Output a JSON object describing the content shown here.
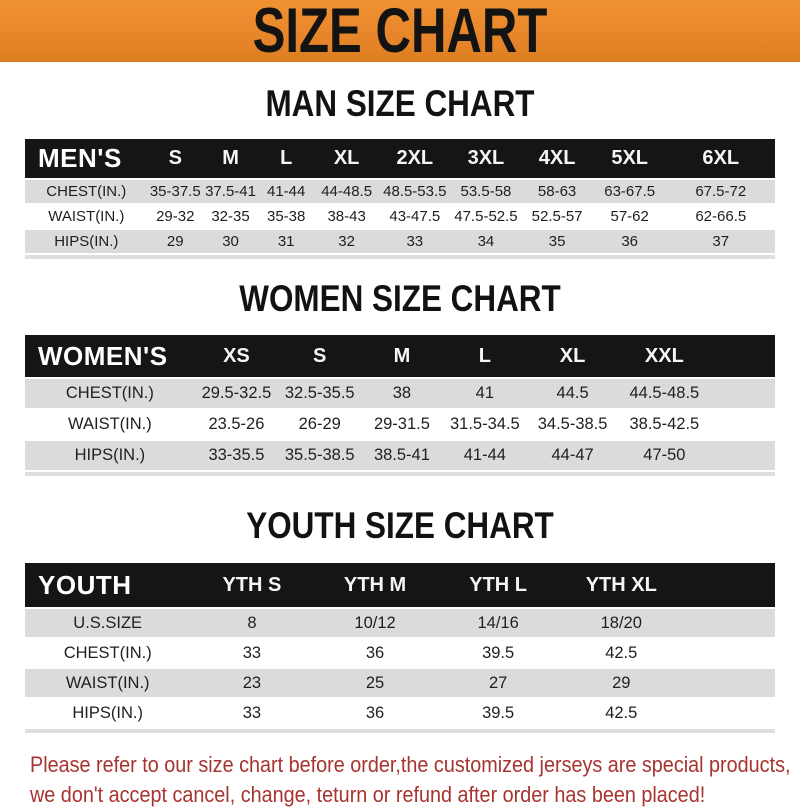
{
  "banner": {
    "title": "SIZE CHART"
  },
  "colors": {
    "banner_bg": "#E8862B",
    "header_bar_bg": "#151515",
    "alt_row_gray": "#DBDBDB",
    "footer_red": "#A83430"
  },
  "sections": {
    "men": {
      "heading": "MAN SIZE CHART",
      "corner_label": "MEN'S",
      "columns": [
        "S",
        "M",
        "L",
        "XL",
        "2XL",
        "3XL",
        "4XL",
        "5XL",
        "6XL"
      ],
      "rows": [
        {
          "label": "CHEST(IN.)",
          "values": [
            "35-37.5",
            "37.5-41",
            "41-44",
            "44-48.5",
            "48.5-53.5",
            "53.5-58",
            "58-63",
            "63-67.5",
            "67.5-72"
          ]
        },
        {
          "label": "WAIST(IN.)",
          "values": [
            "29-32",
            "32-35",
            "35-38",
            "38-43",
            "43-47.5",
            "47.5-52.5",
            "52.5-57",
            "57-62",
            "62-66.5"
          ]
        },
        {
          "label": "HIPS(IN.)",
          "values": [
            "29",
            "30",
            "31",
            "32",
            "33",
            "34",
            "35",
            "36",
            "37"
          ]
        }
      ]
    },
    "women": {
      "heading": "WOMEN SIZE CHART",
      "corner_label": "WOMEN'S",
      "columns": [
        "XS",
        "S",
        "M",
        "L",
        "XL",
        "XXL"
      ],
      "rows": [
        {
          "label": "CHEST(IN.)",
          "values": [
            "29.5-32.5",
            "32.5-35.5",
            "38",
            "41",
            "44.5",
            "44.5-48.5"
          ]
        },
        {
          "label": "WAIST(IN.)",
          "values": [
            "23.5-26",
            "26-29",
            "29-31.5",
            "31.5-34.5",
            "34.5-38.5",
            "38.5-42.5"
          ]
        },
        {
          "label": "HIPS(IN.)",
          "values": [
            "33-35.5",
            "35.5-38.5",
            "38.5-41",
            "41-44",
            "44-47",
            "47-50"
          ]
        }
      ]
    },
    "youth": {
      "heading": "YOUTH SIZE CHART",
      "corner_label": "YOUTH",
      "columns": [
        "YTH S",
        "YTH M",
        "YTH L",
        "YTH XL"
      ],
      "rows": [
        {
          "label": "U.S.SIZE",
          "values": [
            "8",
            "10/12",
            "14/16",
            "18/20"
          ]
        },
        {
          "label": "CHEST(IN.)",
          "values": [
            "33",
            "36",
            "39.5",
            "42.5"
          ]
        },
        {
          "label": "WAIST(IN.)",
          "values": [
            "23",
            "25",
            "27",
            "29"
          ]
        },
        {
          "label": "HIPS(IN.)",
          "values": [
            "33",
            "36",
            "39.5",
            "42.5"
          ]
        }
      ]
    }
  },
  "footer": {
    "line1": "Please refer to our size chart before order,the customized jerseys are special products,",
    "line2": "we don't accept cancel, change, teturn or refund after order has been placed!"
  }
}
